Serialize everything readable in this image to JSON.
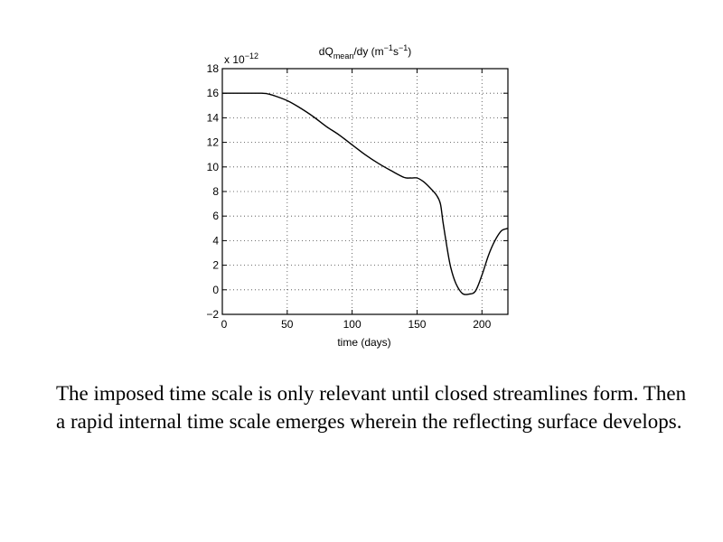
{
  "chart_data": {
    "type": "line",
    "title_main": "dQ",
    "title_sub": "mean",
    "title_rest": "/dy (m",
    "title_exp1": "−1",
    "title_mid": "s",
    "title_exp2": "−1",
    "title_close": ")",
    "y_multiplier_base": "x 10",
    "y_multiplier_exp": "−12",
    "xlabel": "time (days)",
    "ylabel": "",
    "xlim": [
      0,
      220
    ],
    "ylim": [
      -2,
      18
    ],
    "xticks": [
      0,
      50,
      100,
      150,
      200
    ],
    "yticks": [
      18,
      16,
      14,
      12,
      10,
      8,
      6,
      4,
      2,
      0,
      -2
    ],
    "ytick_labels": [
      "18",
      "16",
      "14",
      "12",
      "10",
      "8",
      "6",
      "4",
      "2",
      "0",
      "−2"
    ],
    "grid": true,
    "series": [
      {
        "x": [
          0,
          10,
          20,
          30,
          35,
          40,
          50,
          60,
          70,
          80,
          90,
          100,
          110,
          120,
          130,
          140,
          145,
          150,
          155,
          160,
          165,
          168,
          170,
          173,
          176,
          180,
          185,
          190,
          195,
          200,
          205,
          210,
          215,
          220
        ],
        "y": [
          16,
          16,
          16,
          16,
          15.95,
          15.8,
          15.4,
          14.8,
          14.1,
          13.3,
          12.6,
          11.8,
          11.0,
          10.3,
          9.7,
          9.15,
          9.1,
          9.1,
          8.8,
          8.3,
          7.7,
          7.0,
          5.5,
          3.5,
          1.8,
          0.5,
          -0.3,
          -0.35,
          -0.1,
          1.2,
          2.8,
          4.0,
          4.8,
          5.0
        ]
      }
    ]
  },
  "caption": {
    "text": "The imposed time scale is only relevant until closed streamlines form.  Then a rapid internal time scale emerges wherein the reflecting surface develops."
  }
}
